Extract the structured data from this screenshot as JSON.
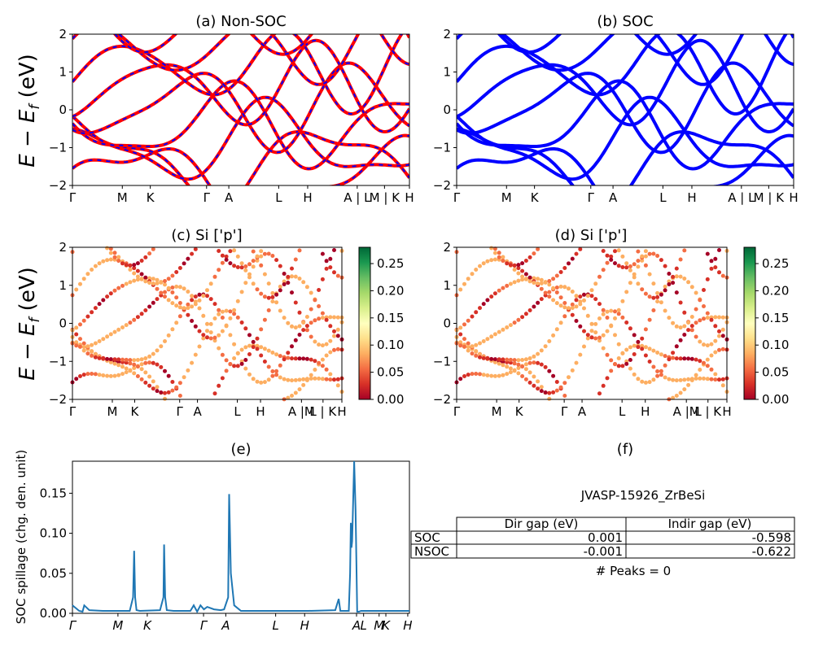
{
  "figure": {
    "ylabel": "E − E_f (eV)",
    "ylabel_base": "E − E",
    "ylabel_sub": "f",
    "ylabel_unit": " (eV)"
  },
  "chart_data": [
    {
      "id": "a",
      "type": "line",
      "title": "(a) Non-SOC",
      "ylim": [
        -2,
        2
      ],
      "yticks": [
        "2",
        "1",
        "0",
        "−1",
        "−2"
      ],
      "xticks": [
        "Γ",
        "M",
        "K",
        "Γ",
        "A",
        "L",
        "H",
        "A | L",
        "M | K",
        "H"
      ],
      "series": [
        {
          "color": "#ff0000",
          "note": "non-SOC bands (red) overlaid with blue dashes"
        },
        {
          "color": "#0000ff"
        }
      ]
    },
    {
      "id": "b",
      "type": "line",
      "title": "(b) SOC",
      "ylim": [
        -2,
        2
      ],
      "yticks": [
        "2",
        "1",
        "0",
        "−1",
        "−2"
      ],
      "xticks": [
        "Γ",
        "M",
        "K",
        "Γ",
        "A",
        "L",
        "H",
        "A | L",
        "M | K",
        "H"
      ],
      "series": [
        {
          "color": "#0000ff"
        }
      ]
    },
    {
      "id": "c",
      "type": "scatter",
      "title": "(c)  Si ['p']",
      "ylim": [
        -2,
        2
      ],
      "yticks": [
        "2",
        "1",
        "0",
        "−1",
        "−2"
      ],
      "xticks": [
        "Γ",
        "M",
        "K",
        "Γ",
        "A",
        "L",
        "H",
        "A |M",
        "L | K",
        "H"
      ],
      "colorbar": {
        "min": 0.0,
        "max": 0.28,
        "ticks": [
          "0.25",
          "0.20",
          "0.15",
          "0.10",
          "0.05",
          "0.00"
        ]
      }
    },
    {
      "id": "d",
      "type": "scatter",
      "title": "(d) Si ['p']",
      "ylim": [
        -2,
        2
      ],
      "yticks": [
        "2",
        "1",
        "0",
        "−1",
        "−2"
      ],
      "xticks": [
        "Γ",
        "M",
        "K",
        "Γ",
        "A",
        "L",
        "H",
        "A |M",
        "L | K",
        "H"
      ],
      "colorbar": {
        "min": 0.0,
        "max": 0.28,
        "ticks": [
          "0.25",
          "0.20",
          "0.15",
          "0.10",
          "0.05",
          "0.00"
        ]
      }
    },
    {
      "id": "e",
      "type": "line",
      "title": "(e)",
      "ylabel": "SOC spillage (chg. den. unit)",
      "ylim": [
        0,
        0.19
      ],
      "yticks": [
        "0.15",
        "0.10",
        "0.05",
        "0.00"
      ],
      "xticks": [
        "Γ",
        "M",
        "K",
        "Γ",
        "A",
        "L",
        "H",
        "A",
        "L",
        "M",
        "K",
        "H"
      ],
      "series": [
        {
          "color": "#1f77b4",
          "x": [
            0,
            0.02,
            0.03,
            0.035,
            0.05,
            0.09,
            0.17,
            0.18,
            0.183,
            0.186,
            0.19,
            0.2,
            0.26,
            0.27,
            0.272,
            0.275,
            0.28,
            0.3,
            0.35,
            0.36,
            0.37,
            0.38,
            0.39,
            0.4,
            0.42,
            0.44,
            0.45,
            0.462,
            0.465,
            0.47,
            0.48,
            0.5,
            0.6,
            0.7,
            0.78,
            0.79,
            0.795,
            0.8,
            0.82,
            0.824,
            0.826,
            0.828,
            0.83,
            0.836,
            0.84,
            0.845,
            0.85,
            0.856,
            0.86,
            0.9,
            1.0
          ],
          "y": [
            0.01,
            0.003,
            0.002,
            0.01,
            0.004,
            0.003,
            0.003,
            0.02,
            0.078,
            0.02,
            0.004,
            0.003,
            0.004,
            0.02,
            0.086,
            0.02,
            0.004,
            0.003,
            0.003,
            0.01,
            0.002,
            0.01,
            0.005,
            0.008,
            0.005,
            0.004,
            0.005,
            0.02,
            0.149,
            0.05,
            0.01,
            0.003,
            0.003,
            0.003,
            0.004,
            0.018,
            0.003,
            0.003,
            0.003,
            0.05,
            0.113,
            0.082,
            0.09,
            0.193,
            0.13,
            0.002,
            0.002,
            0.003,
            0.003,
            0.003,
            0.003
          ]
        }
      ]
    }
  ],
  "panel_f": {
    "title": "(f)",
    "material": "JVASP-15926_ZrBeSi",
    "table": {
      "headers": [
        "",
        "Dir gap (eV)",
        "Indir gap (eV)"
      ],
      "rows": [
        [
          "SOC",
          "0.001",
          "-0.598"
        ],
        [
          "NSOC",
          "-0.001",
          "-0.622"
        ]
      ]
    },
    "peaks": "# Peaks = 0"
  }
}
